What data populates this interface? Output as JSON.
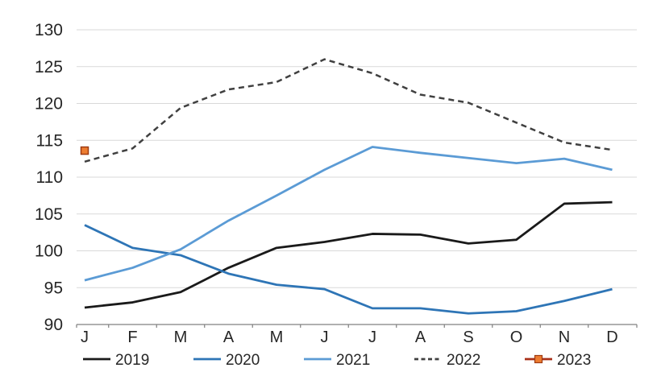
{
  "chart_data": {
    "type": "line",
    "title": "",
    "xlabel": "",
    "ylabel": "",
    "categories": [
      "J",
      "F",
      "M",
      "A",
      "M",
      "J",
      "J",
      "A",
      "S",
      "O",
      "N",
      "D"
    ],
    "y_ticks": [
      90,
      95,
      100,
      105,
      110,
      115,
      120,
      125,
      130
    ],
    "ylim": [
      90,
      130
    ],
    "grid": true,
    "legend_position": "bottom",
    "colors": {
      "background": "#FFFFFF",
      "gridline": "#D9D9D9",
      "axis": "#808080",
      "tick_label": "#262626"
    },
    "series": [
      {
        "name": "2019",
        "color": "#1A1A1A",
        "style": "solid",
        "values": [
          92.3,
          93.0,
          94.4,
          97.7,
          100.4,
          101.2,
          102.3,
          102.2,
          101.0,
          101.5,
          106.4,
          106.6
        ]
      },
      {
        "name": "2020",
        "color": "#2E75B6",
        "style": "solid",
        "values": [
          103.5,
          100.4,
          99.4,
          96.9,
          95.4,
          94.8,
          92.2,
          92.2,
          91.5,
          91.8,
          93.2,
          94.8
        ]
      },
      {
        "name": "2021",
        "color": "#5B9BD5",
        "style": "solid",
        "values": [
          96.0,
          97.7,
          100.2,
          104.1,
          107.5,
          111.0,
          114.1,
          113.3,
          112.6,
          111.9,
          112.5,
          111.0
        ]
      },
      {
        "name": "2022",
        "color": "#404040",
        "style": "dashed",
        "values": [
          112.1,
          113.9,
          119.4,
          121.9,
          122.9,
          126.0,
          124.1,
          121.2,
          120.1,
          117.4,
          114.7,
          113.7
        ]
      },
      {
        "name": "2023",
        "color": "#A93018",
        "style": "marker-only",
        "marker": "square",
        "marker_fill": "#ED7D31",
        "marker_stroke": "#9E3A12",
        "values": [
          113.6,
          null,
          null,
          null,
          null,
          null,
          null,
          null,
          null,
          null,
          null,
          null
        ]
      }
    ]
  }
}
